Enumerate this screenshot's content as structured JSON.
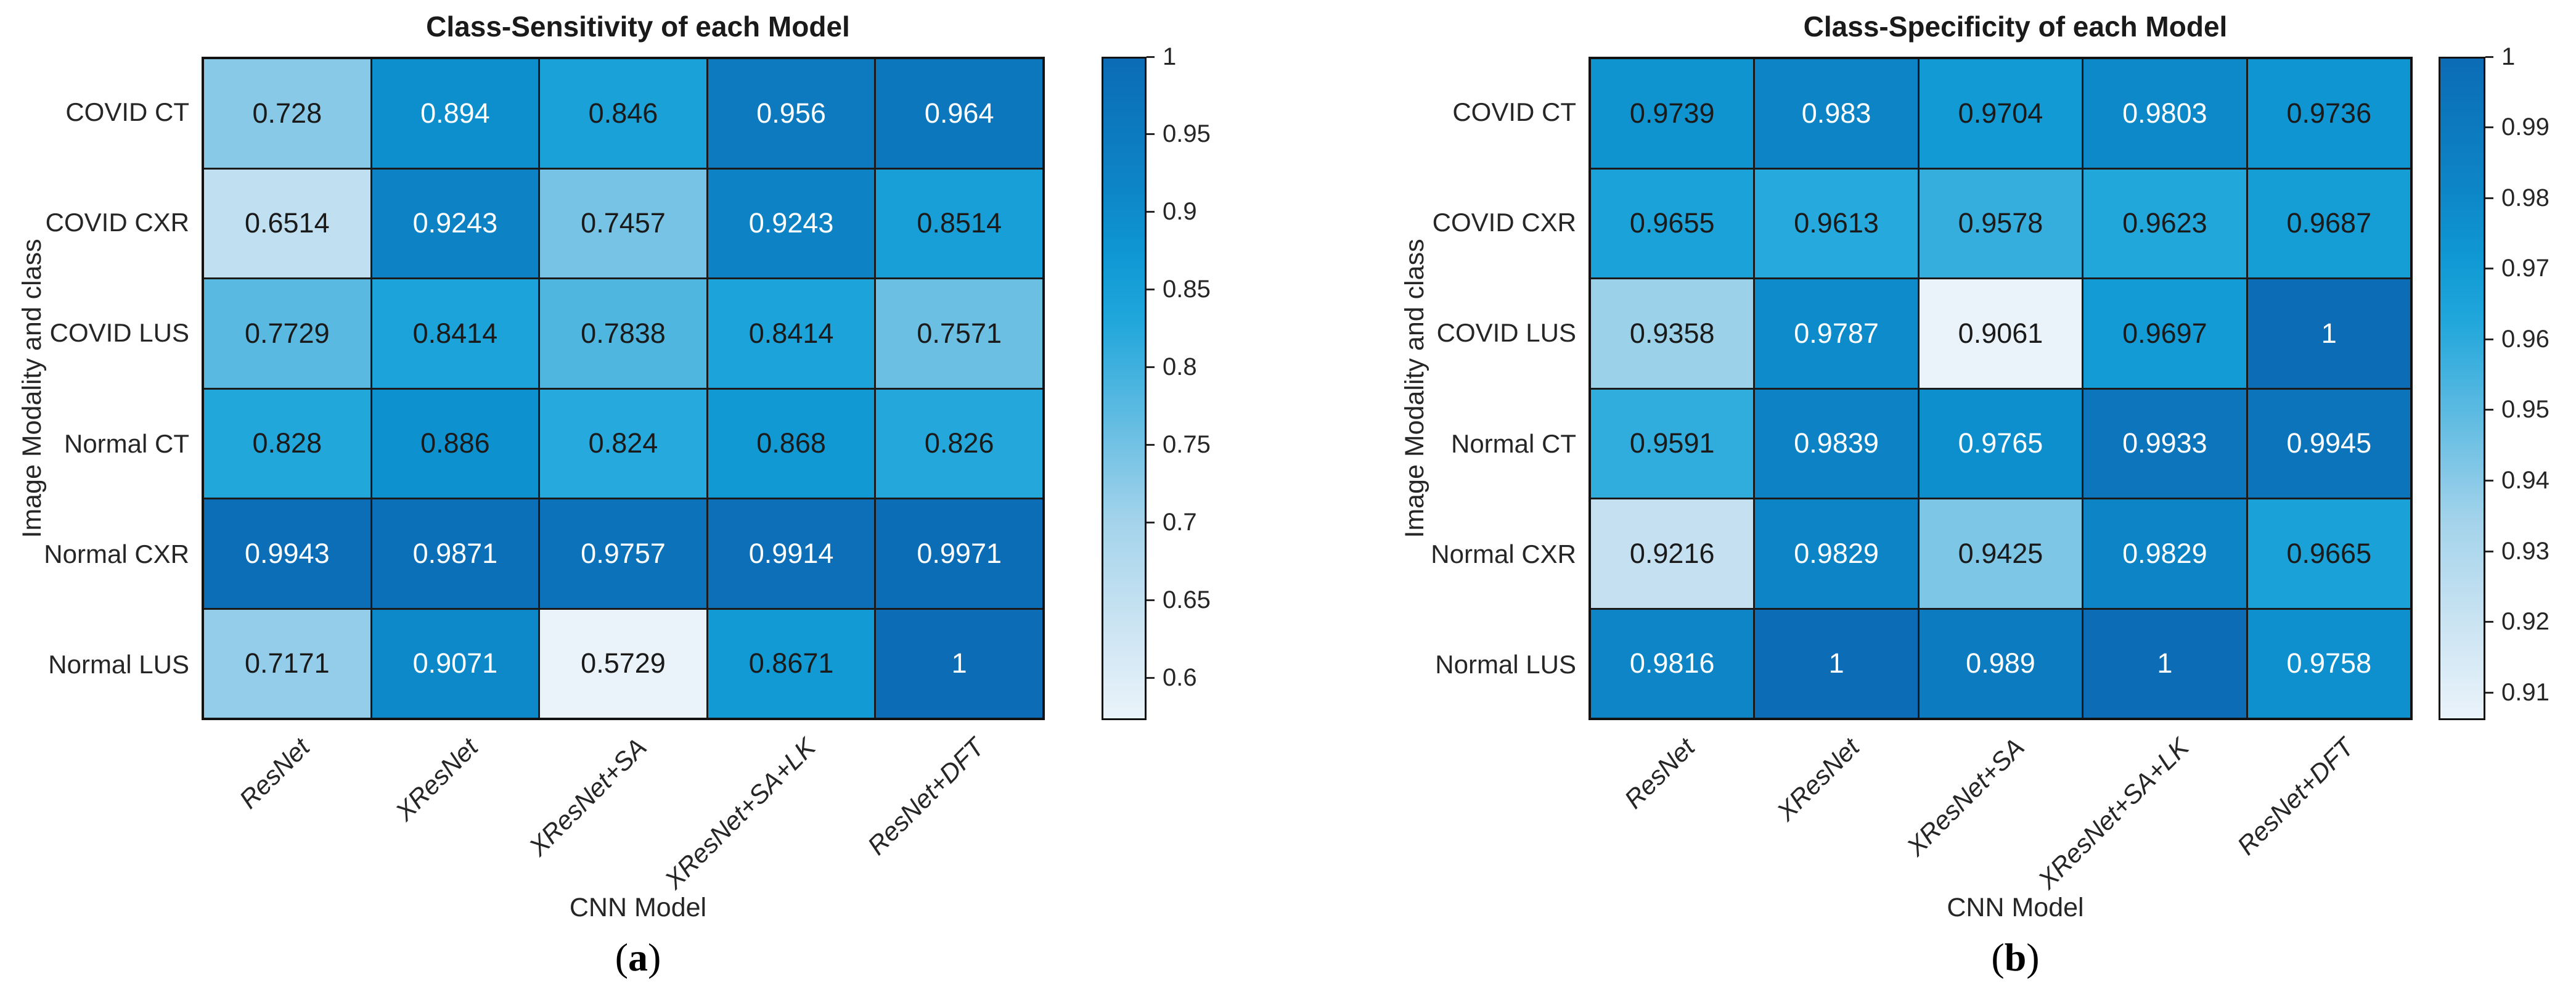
{
  "page": {
    "background": "#ffffff"
  },
  "chart_data": [
    {
      "type": "heatmap",
      "title": "Class-Sensitivity of each Model",
      "xlabel": "CNN Model",
      "ylabel": "Image Modality and class",
      "caption": "(a)",
      "caption_open": "(",
      "caption_letter": "a",
      "caption_close": ")",
      "rows": [
        "COVID CT",
        "COVID CXR",
        "COVID LUS",
        "Normal CT",
        "Normal CXR",
        "Normal LUS"
      ],
      "columns": [
        "ResNet",
        "XResNet",
        "XResNet+SA",
        "XResNet+SA+LK",
        "ResNet+DFT"
      ],
      "values": [
        [
          0.728,
          0.894,
          0.846,
          0.956,
          0.964
        ],
        [
          0.6514,
          0.9243,
          0.7457,
          0.9243,
          0.8514
        ],
        [
          0.7729,
          0.8414,
          0.7838,
          0.8414,
          0.7571
        ],
        [
          0.828,
          0.886,
          0.824,
          0.868,
          0.826
        ],
        [
          0.9943,
          0.9871,
          0.9757,
          0.9914,
          0.9971
        ],
        [
          0.7171,
          0.9071,
          0.5729,
          0.8671,
          1
        ]
      ],
      "color_min": 0.5729,
      "color_max": 1,
      "colorbar_ticks": [
        1,
        0.95,
        0.9,
        0.85,
        0.8,
        0.75,
        0.7,
        0.65,
        0.6
      ],
      "legend_position": "right-colorbar",
      "grid": "on"
    },
    {
      "type": "heatmap",
      "title": "Class-Specificity of each Model",
      "xlabel": "CNN Model",
      "ylabel": "Image Modality and class",
      "caption": "(b)",
      "caption_open": "(",
      "caption_letter": "b",
      "caption_close": ")",
      "rows": [
        "COVID CT",
        "COVID CXR",
        "COVID LUS",
        "Normal CT",
        "Normal CXR",
        "Normal LUS"
      ],
      "columns": [
        "ResNet",
        "XResNet",
        "XResNet+SA",
        "XResNet+SA+LK",
        "ResNet+DFT"
      ],
      "values": [
        [
          0.9739,
          0.983,
          0.9704,
          0.9803,
          0.9736
        ],
        [
          0.9655,
          0.9613,
          0.9578,
          0.9623,
          0.9687
        ],
        [
          0.9358,
          0.9787,
          0.9061,
          0.9697,
          1
        ],
        [
          0.9591,
          0.9839,
          0.9765,
          0.9933,
          0.9945
        ],
        [
          0.9216,
          0.9829,
          0.9425,
          0.9829,
          0.9665
        ],
        [
          0.9816,
          1,
          0.989,
          1,
          0.9758
        ]
      ],
      "color_min": 0.9061,
      "color_max": 1,
      "colorbar_ticks": [
        1,
        0.99,
        0.98,
        0.97,
        0.96,
        0.95,
        0.94,
        0.93,
        0.92,
        0.91
      ],
      "legend_position": "right-colorbar",
      "grid": "on"
    }
  ],
  "colors": {
    "colormap_low": "#EAF3FA",
    "colormap_mid": "#21A7DB",
    "colormap_high": "#0C6CB6",
    "grid_line": "#1a1a1a",
    "text": "#262626",
    "cell_text_light": "#ffffff",
    "cell_text_dark": "#1a1a1a"
  }
}
